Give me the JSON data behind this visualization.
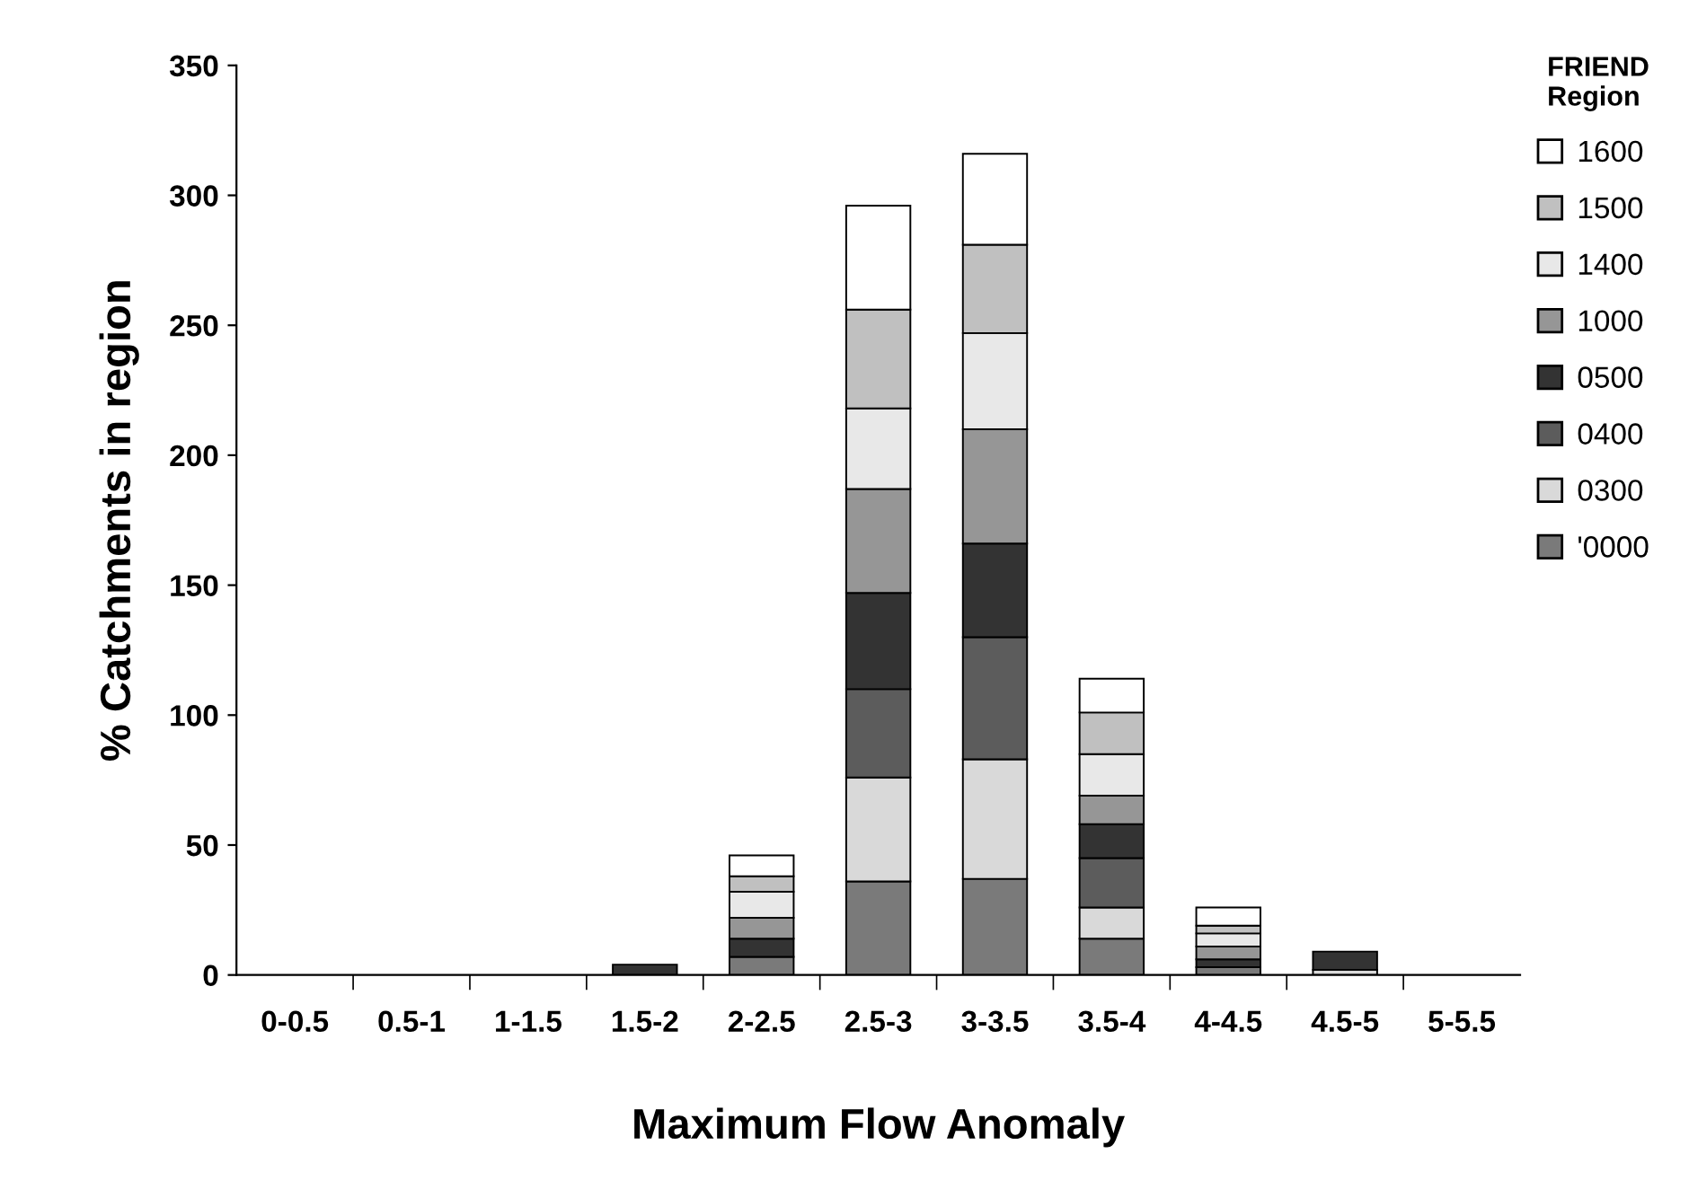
{
  "chart_data": {
    "type": "bar",
    "stacked": true,
    "xlabel": "Maximum Flow Anomaly",
    "ylabel": "% Catchments in region",
    "legend_title": "FRIEND\nRegion",
    "legend": "right",
    "categories": [
      "0-0.5",
      "0.5-1",
      "1-1.5",
      "1.5-2",
      "2-2.5",
      "2.5-3",
      "3-3.5",
      "3.5-4",
      "4-4.5",
      "4.5-5",
      "5-5.5"
    ],
    "ylim": [
      0,
      350
    ],
    "yticks": [
      0,
      50,
      100,
      150,
      200,
      250,
      300,
      350
    ],
    "grid": false,
    "series": [
      {
        "name": "'0000",
        "color": "#7a7a7a",
        "values": [
          0,
          0,
          0,
          0,
          7,
          36,
          37,
          14,
          3,
          0,
          0
        ]
      },
      {
        "name": "0300",
        "color": "#d9d9d9",
        "values": [
          0,
          0,
          0,
          0,
          0,
          40,
          46,
          12,
          0,
          2,
          0
        ]
      },
      {
        "name": "0400",
        "color": "#5c5c5c",
        "values": [
          0,
          0,
          0,
          0,
          0,
          34,
          47,
          19,
          0,
          0,
          0
        ]
      },
      {
        "name": "0500",
        "color": "#333333",
        "values": [
          0,
          0,
          0,
          4,
          7,
          37,
          36,
          13,
          3,
          7,
          0
        ]
      },
      {
        "name": "1000",
        "color": "#969696",
        "values": [
          0,
          0,
          0,
          0,
          8,
          40,
          44,
          11,
          5,
          0,
          0
        ]
      },
      {
        "name": "1400",
        "color": "#e8e8e8",
        "values": [
          0,
          0,
          0,
          0,
          10,
          31,
          37,
          16,
          5,
          0,
          0
        ]
      },
      {
        "name": "1500",
        "color": "#c0c0c0",
        "values": [
          0,
          0,
          0,
          0,
          6,
          38,
          34,
          16,
          3,
          0,
          0
        ]
      },
      {
        "name": "1600",
        "color": "#ffffff",
        "values": [
          0,
          0,
          0,
          0,
          8,
          40,
          35,
          13,
          7,
          0,
          0
        ]
      }
    ]
  }
}
